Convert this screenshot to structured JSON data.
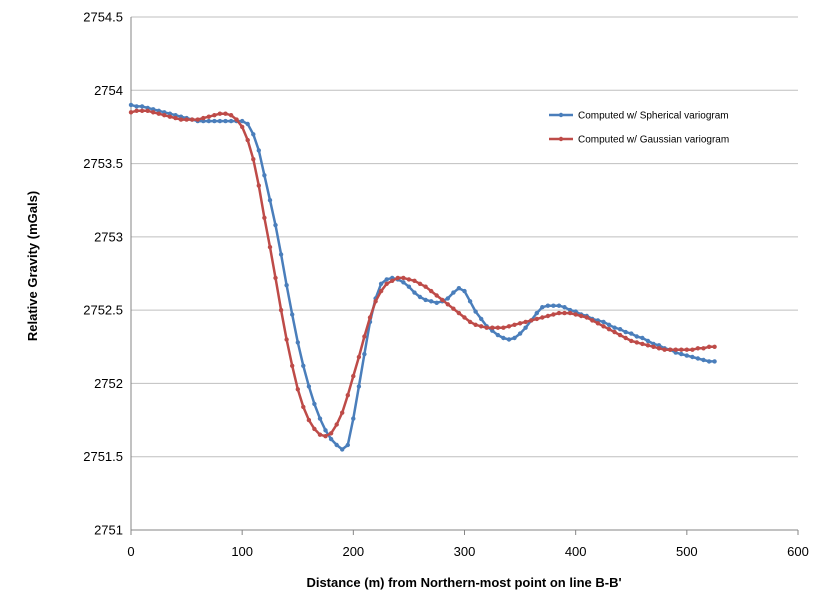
{
  "chart_data": {
    "type": "line",
    "title": "",
    "xlabel": "Distance (m) from Northern-most point on line B-B'",
    "ylabel": "Relative Gravity (mGals)",
    "xlim": [
      0,
      600
    ],
    "ylim": [
      2751,
      2754.5
    ],
    "x_ticks": [
      "0",
      "100",
      "200",
      "300",
      "400",
      "500",
      "600"
    ],
    "y_ticks": [
      "2751",
      "2751.5",
      "2752",
      "2752.5",
      "2753",
      "2753.5",
      "2754",
      "2754.5"
    ],
    "grid": "horizontal",
    "legend_position": "top-right",
    "series": [
      {
        "name": "Computed w/ Spherical variogram",
        "color": "#4a7ebb",
        "points": [
          [
            0,
            2753.9
          ],
          [
            5,
            2753.89
          ],
          [
            10,
            2753.89
          ],
          [
            15,
            2753.88
          ],
          [
            20,
            2753.87
          ],
          [
            25,
            2753.86
          ],
          [
            30,
            2753.85
          ],
          [
            35,
            2753.84
          ],
          [
            40,
            2753.83
          ],
          [
            45,
            2753.82
          ],
          [
            50,
            2753.81
          ],
          [
            55,
            2753.8
          ],
          [
            60,
            2753.79
          ],
          [
            65,
            2753.79
          ],
          [
            70,
            2753.79
          ],
          [
            75,
            2753.79
          ],
          [
            80,
            2753.79
          ],
          [
            85,
            2753.79
          ],
          [
            90,
            2753.79
          ],
          [
            95,
            2753.79
          ],
          [
            100,
            2753.79
          ],
          [
            105,
            2753.77
          ],
          [
            110,
            2753.7
          ],
          [
            115,
            2753.59
          ],
          [
            120,
            2753.42
          ],
          [
            125,
            2753.25
          ],
          [
            130,
            2753.08
          ],
          [
            135,
            2752.88
          ],
          [
            140,
            2752.67
          ],
          [
            145,
            2752.47
          ],
          [
            150,
            2752.28
          ],
          [
            155,
            2752.12
          ],
          [
            160,
            2751.98
          ],
          [
            165,
            2751.86
          ],
          [
            170,
            2751.76
          ],
          [
            175,
            2751.68
          ],
          [
            180,
            2751.62
          ],
          [
            185,
            2751.58
          ],
          [
            190,
            2751.55
          ],
          [
            195,
            2751.58
          ],
          [
            200,
            2751.76
          ],
          [
            205,
            2751.98
          ],
          [
            210,
            2752.2
          ],
          [
            215,
            2752.42
          ],
          [
            220,
            2752.58
          ],
          [
            225,
            2752.68
          ],
          [
            230,
            2752.71
          ],
          [
            235,
            2752.72
          ],
          [
            240,
            2752.71
          ],
          [
            245,
            2752.69
          ],
          [
            250,
            2752.66
          ],
          [
            255,
            2752.62
          ],
          [
            260,
            2752.59
          ],
          [
            265,
            2752.57
          ],
          [
            270,
            2752.56
          ],
          [
            275,
            2752.55
          ],
          [
            280,
            2752.56
          ],
          [
            285,
            2752.58
          ],
          [
            290,
            2752.62
          ],
          [
            295,
            2752.65
          ],
          [
            300,
            2752.63
          ],
          [
            305,
            2752.56
          ],
          [
            310,
            2752.49
          ],
          [
            315,
            2752.44
          ],
          [
            320,
            2752.39
          ],
          [
            325,
            2752.36
          ],
          [
            330,
            2752.33
          ],
          [
            335,
            2752.31
          ],
          [
            340,
            2752.3
          ],
          [
            345,
            2752.31
          ],
          [
            350,
            2752.34
          ],
          [
            355,
            2752.38
          ],
          [
            360,
            2752.43
          ],
          [
            365,
            2752.48
          ],
          [
            370,
            2752.52
          ],
          [
            375,
            2752.53
          ],
          [
            380,
            2752.53
          ],
          [
            385,
            2752.53
          ],
          [
            390,
            2752.52
          ],
          [
            395,
            2752.5
          ],
          [
            400,
            2752.49
          ],
          [
            405,
            2752.47
          ],
          [
            410,
            2752.46
          ],
          [
            415,
            2752.44
          ],
          [
            420,
            2752.43
          ],
          [
            425,
            2752.42
          ],
          [
            430,
            2752.4
          ],
          [
            435,
            2752.38
          ],
          [
            440,
            2752.37
          ],
          [
            445,
            2752.35
          ],
          [
            450,
            2752.34
          ],
          [
            455,
            2752.32
          ],
          [
            460,
            2752.31
          ],
          [
            465,
            2752.29
          ],
          [
            470,
            2752.27
          ],
          [
            475,
            2752.26
          ],
          [
            480,
            2752.24
          ],
          [
            485,
            2752.23
          ],
          [
            490,
            2752.21
          ],
          [
            495,
            2752.2
          ],
          [
            500,
            2752.19
          ],
          [
            505,
            2752.18
          ],
          [
            510,
            2752.17
          ],
          [
            515,
            2752.16
          ],
          [
            520,
            2752.15
          ],
          [
            525,
            2752.15
          ]
        ]
      },
      {
        "name": "Computed w/ Gaussian variogram",
        "color": "#be4b48",
        "points": [
          [
            0,
            2753.85
          ],
          [
            5,
            2753.86
          ],
          [
            10,
            2753.86
          ],
          [
            15,
            2753.86
          ],
          [
            20,
            2753.85
          ],
          [
            25,
            2753.84
          ],
          [
            30,
            2753.83
          ],
          [
            35,
            2753.82
          ],
          [
            40,
            2753.81
          ],
          [
            45,
            2753.8
          ],
          [
            50,
            2753.8
          ],
          [
            55,
            2753.8
          ],
          [
            60,
            2753.8
          ],
          [
            65,
            2753.81
          ],
          [
            70,
            2753.82
          ],
          [
            75,
            2753.83
          ],
          [
            80,
            2753.84
          ],
          [
            85,
            2753.84
          ],
          [
            90,
            2753.83
          ],
          [
            95,
            2753.8
          ],
          [
            100,
            2753.75
          ],
          [
            105,
            2753.66
          ],
          [
            110,
            2753.53
          ],
          [
            115,
            2753.35
          ],
          [
            120,
            2753.13
          ],
          [
            125,
            2752.93
          ],
          [
            130,
            2752.72
          ],
          [
            135,
            2752.5
          ],
          [
            140,
            2752.3
          ],
          [
            145,
            2752.12
          ],
          [
            150,
            2751.96
          ],
          [
            155,
            2751.84
          ],
          [
            160,
            2751.75
          ],
          [
            165,
            2751.69
          ],
          [
            170,
            2751.65
          ],
          [
            175,
            2751.64
          ],
          [
            180,
            2751.66
          ],
          [
            185,
            2751.72
          ],
          [
            190,
            2751.8
          ],
          [
            195,
            2751.92
          ],
          [
            200,
            2752.05
          ],
          [
            205,
            2752.18
          ],
          [
            210,
            2752.32
          ],
          [
            215,
            2752.45
          ],
          [
            220,
            2752.56
          ],
          [
            225,
            2752.63
          ],
          [
            230,
            2752.68
          ],
          [
            235,
            2752.7
          ],
          [
            240,
            2752.72
          ],
          [
            245,
            2752.72
          ],
          [
            250,
            2752.71
          ],
          [
            255,
            2752.7
          ],
          [
            260,
            2752.68
          ],
          [
            265,
            2752.66
          ],
          [
            270,
            2752.63
          ],
          [
            275,
            2752.6
          ],
          [
            280,
            2752.57
          ],
          [
            285,
            2752.54
          ],
          [
            290,
            2752.51
          ],
          [
            295,
            2752.48
          ],
          [
            300,
            2752.45
          ],
          [
            305,
            2752.42
          ],
          [
            310,
            2752.4
          ],
          [
            315,
            2752.39
          ],
          [
            320,
            2752.38
          ],
          [
            325,
            2752.38
          ],
          [
            330,
            2752.38
          ],
          [
            335,
            2752.38
          ],
          [
            340,
            2752.39
          ],
          [
            345,
            2752.4
          ],
          [
            350,
            2752.41
          ],
          [
            355,
            2752.42
          ],
          [
            360,
            2752.43
          ],
          [
            365,
            2752.44
          ],
          [
            370,
            2752.45
          ],
          [
            375,
            2752.46
          ],
          [
            380,
            2752.47
          ],
          [
            385,
            2752.48
          ],
          [
            390,
            2752.48
          ],
          [
            395,
            2752.48
          ],
          [
            400,
            2752.47
          ],
          [
            405,
            2752.46
          ],
          [
            410,
            2752.45
          ],
          [
            415,
            2752.43
          ],
          [
            420,
            2752.41
          ],
          [
            425,
            2752.39
          ],
          [
            430,
            2752.37
          ],
          [
            435,
            2752.35
          ],
          [
            440,
            2752.33
          ],
          [
            445,
            2752.31
          ],
          [
            450,
            2752.29
          ],
          [
            455,
            2752.28
          ],
          [
            460,
            2752.27
          ],
          [
            465,
            2752.26
          ],
          [
            470,
            2752.25
          ],
          [
            475,
            2752.24
          ],
          [
            480,
            2752.23
          ],
          [
            485,
            2752.23
          ],
          [
            490,
            2752.23
          ],
          [
            495,
            2752.23
          ],
          [
            500,
            2752.23
          ],
          [
            505,
            2752.23
          ],
          [
            510,
            2752.24
          ],
          [
            515,
            2752.24
          ],
          [
            520,
            2752.25
          ],
          [
            525,
            2752.25
          ]
        ]
      }
    ]
  }
}
